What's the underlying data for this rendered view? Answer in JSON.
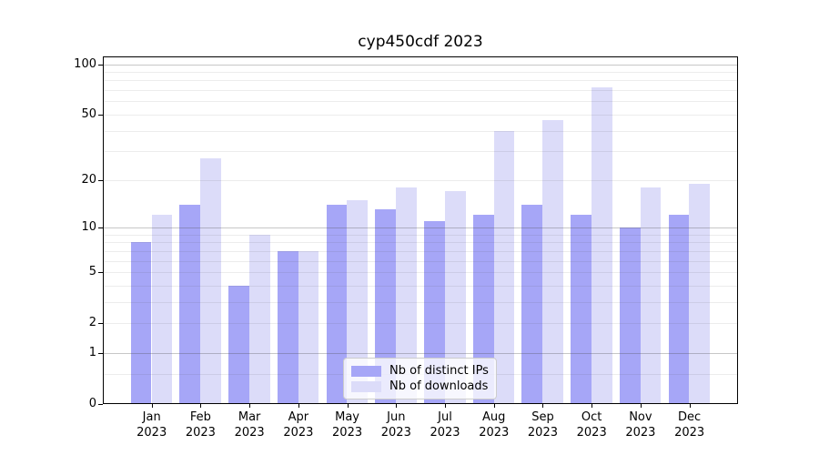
{
  "title": "cyp450cdf 2023",
  "colors": {
    "distinct_ips": "#a6a6f7",
    "downloads": "#dcdcf9",
    "grid_minor": "rgba(70,70,70,0.10)",
    "grid_major": "rgba(70,70,70,0.30)",
    "axis": "#000000",
    "legend_border": "#cccccc"
  },
  "x_axis": {
    "months": [
      "Jan",
      "Feb",
      "Mar",
      "Apr",
      "May",
      "Jun",
      "Jul",
      "Aug",
      "Sep",
      "Oct",
      "Nov",
      "Dec"
    ],
    "year": "2023"
  },
  "y_axis": {
    "scale": "log10(1+x)",
    "ticks": [
      {
        "value": 100,
        "label": "100"
      },
      {
        "value": 50,
        "label": "50"
      },
      {
        "value": 20,
        "label": "20"
      },
      {
        "value": 10,
        "label": "10"
      },
      {
        "value": 5,
        "label": "5"
      },
      {
        "value": 2,
        "label": "2"
      },
      {
        "value": 1,
        "label": "1"
      },
      {
        "value": 0,
        "label": "0"
      }
    ],
    "gridlines_minor": [
      0.5,
      2,
      3,
      4,
      5,
      6,
      7,
      8,
      9,
      20,
      30,
      40,
      50,
      60,
      70,
      80,
      90
    ],
    "gridlines_major": [
      1,
      10,
      100
    ]
  },
  "legend": {
    "items": [
      {
        "label": "Nb of distinct IPs",
        "color_key": "distinct_ips"
      },
      {
        "label": "Nb of downloads",
        "color_key": "downloads"
      }
    ]
  },
  "chart_data": {
    "type": "bar",
    "title": "cyp450cdf 2023",
    "xlabel": "",
    "ylabel": "",
    "yscale": "log1p",
    "ylim": [
      0,
      111
    ],
    "grid": true,
    "legend_position": "lower center",
    "categories": [
      "Jan 2023",
      "Feb 2023",
      "Mar 2023",
      "Apr 2023",
      "May 2023",
      "Jun 2023",
      "Jul 2023",
      "Aug 2023",
      "Sep 2023",
      "Oct 2023",
      "Nov 2023",
      "Dec 2023"
    ],
    "series": [
      {
        "name": "Nb of distinct IPs",
        "values": [
          8,
          14,
          4,
          7,
          14,
          13,
          11,
          12,
          14,
          12,
          10,
          12
        ]
      },
      {
        "name": "Nb of downloads",
        "values": [
          12,
          27,
          9,
          7,
          15,
          18,
          17,
          40,
          46,
          73,
          18,
          19
        ]
      }
    ]
  }
}
